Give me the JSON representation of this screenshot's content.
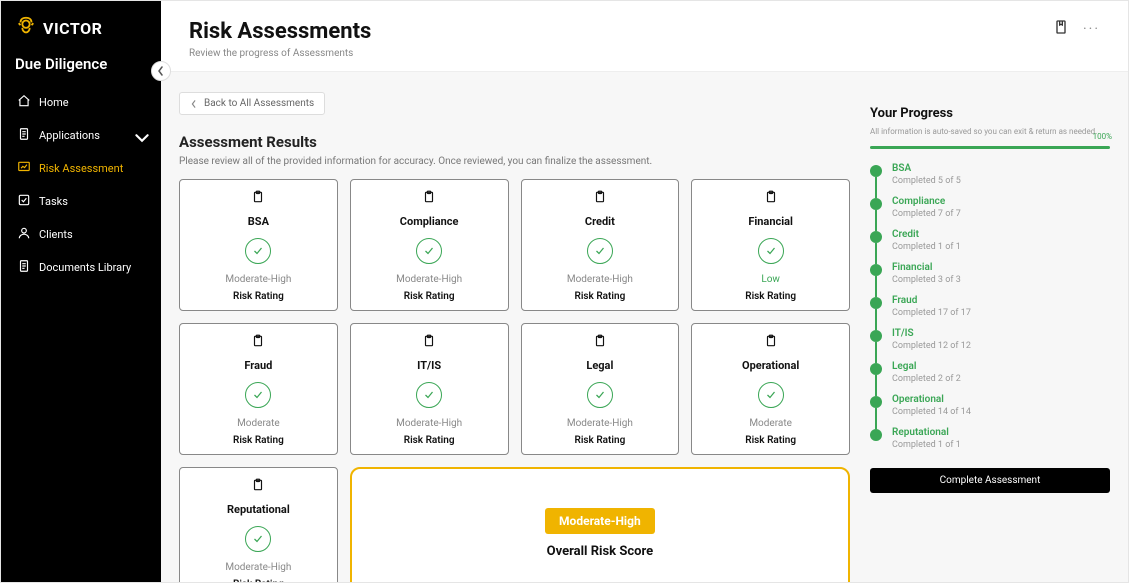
{
  "brand": {
    "name": "VICTOR"
  },
  "section_title": "Due Diligence",
  "nav": [
    {
      "label": "Home",
      "icon": "home",
      "active": false,
      "expandable": false
    },
    {
      "label": "Applications",
      "icon": "doc",
      "active": false,
      "expandable": true
    },
    {
      "label": "Risk Assessment",
      "icon": "chart",
      "active": true,
      "expandable": false
    },
    {
      "label": "Tasks",
      "icon": "check",
      "active": false,
      "expandable": false
    },
    {
      "label": "Clients",
      "icon": "user",
      "active": false,
      "expandable": false
    },
    {
      "label": "Documents Library",
      "icon": "doc",
      "active": false,
      "expandable": false
    }
  ],
  "header": {
    "title": "Risk Assessments",
    "subtitle": "Review the progress of Assessments"
  },
  "back_button": "Back to All Assessments",
  "results": {
    "title": "Assessment Results",
    "subtitle": "Please review all of the provided information for accuracy. Once reviewed, you can finalize the assessment.",
    "rating_label": "Risk Rating",
    "cards": [
      {
        "title": "BSA",
        "rating": "Moderate-High",
        "rating_class": ""
      },
      {
        "title": "Compliance",
        "rating": "Moderate-High",
        "rating_class": ""
      },
      {
        "title": "Credit",
        "rating": "Moderate-High",
        "rating_class": ""
      },
      {
        "title": "Financial",
        "rating": "Low",
        "rating_class": "low"
      },
      {
        "title": "Fraud",
        "rating": "Moderate",
        "rating_class": ""
      },
      {
        "title": "IT/IS",
        "rating": "Moderate-High",
        "rating_class": ""
      },
      {
        "title": "Legal",
        "rating": "Moderate-High",
        "rating_class": ""
      },
      {
        "title": "Operational",
        "rating": "Moderate",
        "rating_class": ""
      },
      {
        "title": "Reputational",
        "rating": "Moderate-High",
        "rating_class": ""
      }
    ],
    "overall": {
      "badge": "Moderate-High",
      "label": "Overall Risk Score"
    }
  },
  "progress": {
    "title": "Your Progress",
    "hint": "All information is auto-saved so you can exit & return as needed.",
    "percent_label": "100%",
    "steps": [
      {
        "title": "BSA",
        "sub": "Completed 5 of 5"
      },
      {
        "title": "Compliance",
        "sub": "Completed 7 of 7"
      },
      {
        "title": "Credit",
        "sub": "Completed 1 of 1"
      },
      {
        "title": "Financial",
        "sub": "Completed 3 of 3"
      },
      {
        "title": "Fraud",
        "sub": "Completed 17 of 17"
      },
      {
        "title": "IT/IS",
        "sub": "Completed 12 of 12"
      },
      {
        "title": "Legal",
        "sub": "Completed 2 of 2"
      },
      {
        "title": "Operational",
        "sub": "Completed 14 of 14"
      },
      {
        "title": "Reputational",
        "sub": "Completed 1 of 1"
      }
    ],
    "complete_button": "Complete Assessment"
  },
  "colors": {
    "accent": "#f0b400",
    "success": "#3aa655",
    "bg": "#f7f7f7",
    "border": "#888"
  }
}
